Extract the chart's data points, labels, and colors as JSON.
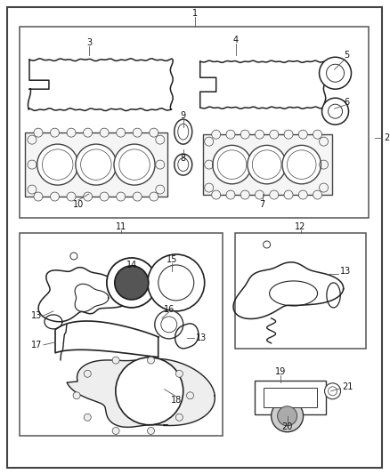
{
  "bg_color": "#ffffff",
  "border_color": "#555555",
  "label_color": "#000000",
  "figsize": [
    4.38,
    5.33
  ],
  "dpi": 100
}
